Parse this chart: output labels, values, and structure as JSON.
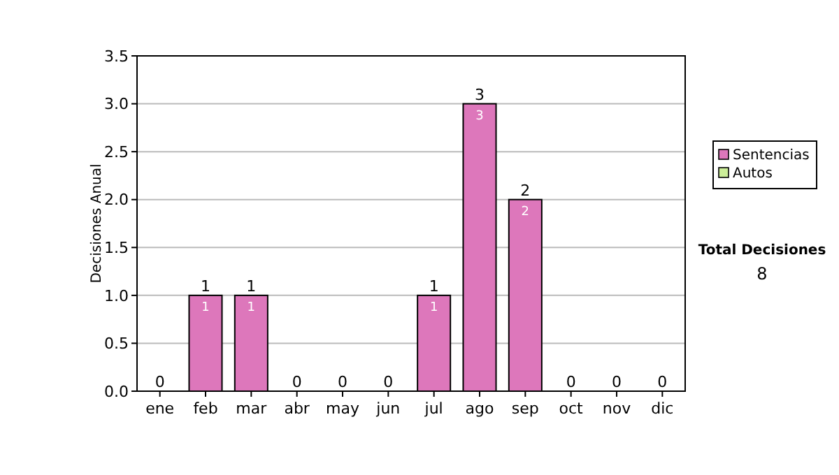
{
  "chart_data": {
    "type": "bar",
    "ylabel": "Decisiones Anual",
    "categories": [
      "ene",
      "feb",
      "mar",
      "abr",
      "may",
      "jun",
      "jul",
      "ago",
      "sep",
      "oct",
      "nov",
      "dic"
    ],
    "series": [
      {
        "name": "Sentencias",
        "color": "#dd77bb",
        "values": [
          0,
          1,
          1,
          0,
          0,
          0,
          1,
          3,
          2,
          0,
          0,
          0
        ],
        "value_labels": [
          null,
          "1",
          "1",
          null,
          null,
          null,
          "1",
          "3",
          "2",
          null,
          null,
          null
        ]
      },
      {
        "name": "Autos",
        "color": "#ccee99",
        "values": [
          0,
          0,
          0,
          0,
          0,
          0,
          0,
          0,
          0,
          0,
          0,
          0
        ]
      }
    ],
    "stacked": true,
    "totals": [
      "0",
      "1",
      "1",
      "0",
      "0",
      "0",
      "1",
      "3",
      "2",
      "0",
      "0",
      "0"
    ],
    "ylim": [
      0,
      3.5
    ],
    "yticks": [
      {
        "value": 0,
        "label": "0.0"
      },
      {
        "value": 0.5,
        "label": "0.5"
      },
      {
        "value": 1,
        "label": "1.0"
      },
      {
        "value": 1.5,
        "label": "1.5"
      },
      {
        "value": 2,
        "label": "2.0"
      },
      {
        "value": 2.5,
        "label": "2.5"
      },
      {
        "value": 3,
        "label": "3.0"
      },
      {
        "value": 3.5,
        "label": "3.5"
      }
    ],
    "grid": "y",
    "legend": "right",
    "annotations": [
      "Total Decisiones",
      "8"
    ]
  }
}
